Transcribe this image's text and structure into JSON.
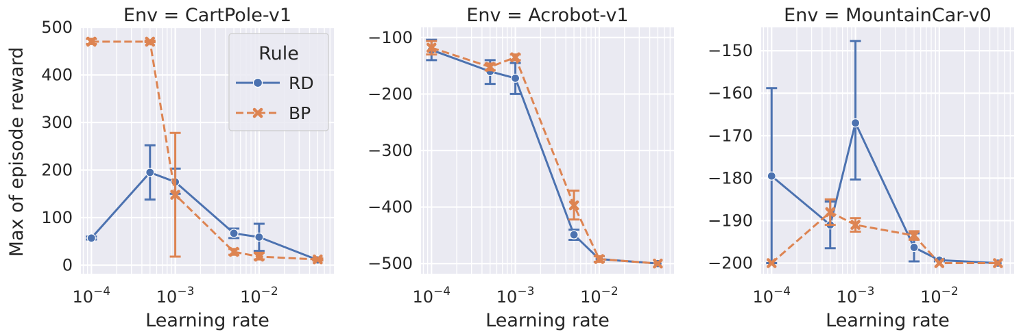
{
  "colors": {
    "rd": "#4c72b0",
    "bp": "#dd8452",
    "panel_bg": "#eaeaf2",
    "grid": "#ffffff"
  },
  "legend": {
    "title": "Rule",
    "entries": [
      {
        "label": "RD",
        "marker": "circle"
      },
      {
        "label": "BP",
        "marker": "x"
      }
    ],
    "placement": "top-right of first panel"
  },
  "chart_data": [
    {
      "type": "line",
      "title": "Env = CartPole-v1",
      "xlabel": "Learning rate",
      "ylabel": "Max of episode reward",
      "xscale": "log",
      "xlim": [
        7.5e-05,
        0.078
      ],
      "ylim": [
        -18,
        500
      ],
      "yticks": [
        0,
        100,
        200,
        300,
        400,
        500
      ],
      "xticks": [
        {
          "value": 0.0001,
          "base": "10",
          "exp": "−4"
        },
        {
          "value": 0.001,
          "base": "10",
          "exp": "−3"
        },
        {
          "value": 0.01,
          "base": "10",
          "exp": "−2"
        }
      ],
      "grid": true,
      "series": [
        {
          "name": "RD",
          "color": "#4c72b0",
          "style": "solid",
          "marker": "circle",
          "x": [
            0.0001,
            0.0005,
            0.001,
            0.005,
            0.01,
            0.05
          ],
          "y": [
            57,
            195,
            175,
            67,
            59,
            11
          ],
          "err_low": [
            54,
            138,
            150,
            57,
            30,
            10
          ],
          "err_high": [
            60,
            252,
            203,
            77,
            87,
            12
          ]
        },
        {
          "name": "BP",
          "color": "#dd8452",
          "style": "dashed",
          "marker": "x",
          "x": [
            0.0001,
            0.0005,
            0.001,
            0.005,
            0.01,
            0.05
          ],
          "y": [
            470,
            470,
            148,
            28,
            18,
            12
          ],
          "err_low": [
            465,
            469,
            18,
            22,
            12,
            10
          ],
          "err_high": [
            476,
            472,
            278,
            34,
            26,
            14
          ]
        }
      ]
    },
    {
      "type": "line",
      "title": "Env = Acrobot-v1",
      "xlabel": "Learning rate",
      "ylabel": "",
      "xscale": "log",
      "xlim": [
        7.5e-05,
        0.078
      ],
      "ylim": [
        -518,
        -82
      ],
      "yticks": [
        -100,
        -200,
        -300,
        -400,
        -500
      ],
      "xticks": [
        {
          "value": 0.0001,
          "base": "10",
          "exp": "−4"
        },
        {
          "value": 0.001,
          "base": "10",
          "exp": "−3"
        },
        {
          "value": 0.01,
          "base": "10",
          "exp": "−2"
        }
      ],
      "grid": true,
      "series": [
        {
          "name": "RD",
          "color": "#4c72b0",
          "style": "solid",
          "marker": "circle",
          "x": [
            0.0001,
            0.0005,
            0.001,
            0.005,
            0.01,
            0.05
          ],
          "y": [
            -122,
            -160,
            -172,
            -449,
            -492,
            -500
          ],
          "err_low": [
            -140,
            -182,
            -200,
            -458,
            -497,
            -500
          ],
          "err_high": [
            -104,
            -140,
            -145,
            -440,
            -487,
            -500
          ]
        },
        {
          "name": "BP",
          "color": "#dd8452",
          "style": "dashed",
          "marker": "x",
          "x": [
            0.0001,
            0.0005,
            0.001,
            0.005,
            0.01,
            0.05
          ],
          "y": [
            -118,
            -152,
            -135,
            -397,
            -492,
            -500
          ],
          "err_low": [
            -130,
            -158,
            -140,
            -422,
            -497,
            -500
          ],
          "err_high": [
            -106,
            -146,
            -130,
            -371,
            -487,
            -500
          ]
        }
      ]
    },
    {
      "type": "line",
      "title": "Env = MountainCar-v0",
      "xlabel": "Learning rate",
      "ylabel": "",
      "xscale": "log",
      "xlim": [
        7.5e-05,
        0.078
      ],
      "ylim": [
        -202.5,
        -144.5
      ],
      "yticks": [
        -150,
        -160,
        -170,
        -180,
        -190,
        -200
      ],
      "xticks": [
        {
          "value": 0.0001,
          "base": "10",
          "exp": "−4"
        },
        {
          "value": 0.001,
          "base": "10",
          "exp": "−3"
        },
        {
          "value": 0.01,
          "base": "10",
          "exp": "−2"
        }
      ],
      "grid": true,
      "series": [
        {
          "name": "RD",
          "color": "#4c72b0",
          "style": "solid",
          "marker": "circle",
          "x": [
            0.0001,
            0.0005,
            0.001,
            0.005,
            0.01,
            0.05
          ],
          "y": [
            -179.5,
            -191,
            -167,
            -196.3,
            -199.3,
            -200
          ],
          "err_low": [
            -200,
            -196.5,
            -180.3,
            -199.6,
            -199.6,
            -200
          ],
          "err_high": [
            -158.8,
            -185.5,
            -147.7,
            -193,
            -199,
            -200
          ]
        },
        {
          "name": "BP",
          "color": "#dd8452",
          "style": "dashed",
          "marker": "x",
          "x": [
            0.0001,
            0.0005,
            0.001,
            0.005,
            0.01,
            0.05
          ],
          "y": [
            -200,
            -188,
            -191,
            -193.5,
            -200,
            -200
          ],
          "err_low": [
            -200,
            -191,
            -192.6,
            -194.5,
            -200,
            -200
          ],
          "err_high": [
            -200,
            -185,
            -189.4,
            -192.5,
            -200,
            -200
          ]
        }
      ]
    }
  ]
}
